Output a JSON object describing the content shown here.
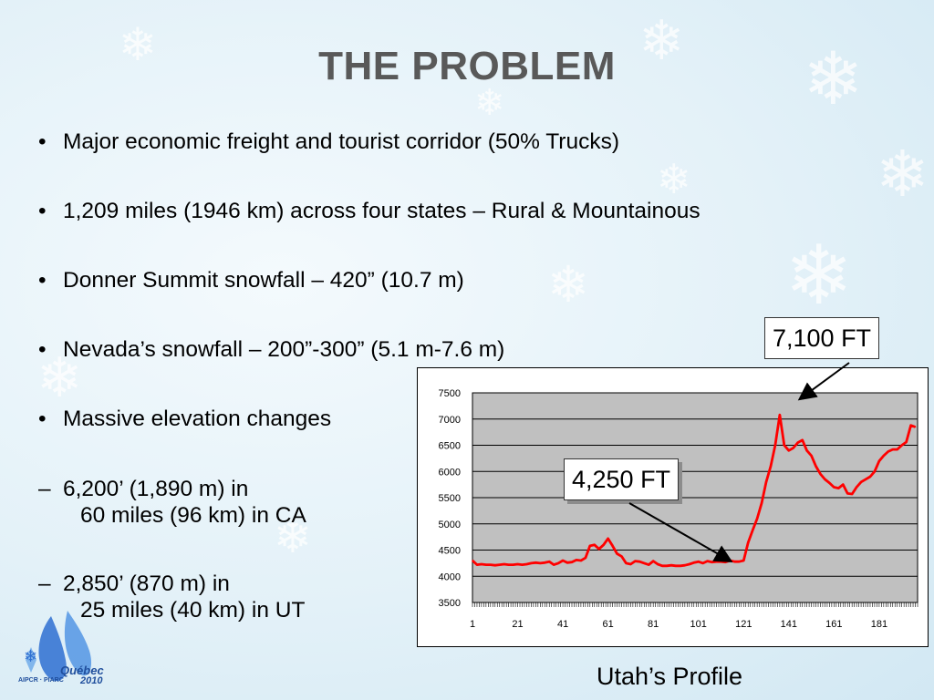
{
  "slide": {
    "title": "THE PROBLEM",
    "bullets": [
      {
        "mark": "•",
        "text": "Major economic freight and tourist corridor  (50% Trucks)"
      },
      {
        "mark": "•",
        "text": "1,209 miles (1946 km) across four states – Rural & Mountainous"
      },
      {
        "mark": "•",
        "text": "Donner Summit snowfall – 420” (10.7 m)"
      },
      {
        "mark": "•",
        "text": "Nevada’s snowfall – 200”-300” (5.1 m-7.6 m)"
      },
      {
        "mark": "•",
        "text": "Massive elevation changes"
      }
    ],
    "sub_bullets": [
      {
        "mark": "–",
        "line1": "6,200’ (1,890 m) in",
        "line2": "60 miles (96 km) in CA"
      },
      {
        "mark": "–",
        "line1": "2,850’ (870 m) in",
        "line2": "25 miles (40 km) in UT"
      }
    ],
    "caption": "Utah’s Profile",
    "logo": {
      "text_main": "Québec",
      "text_year": "2010",
      "text_org": "AIPCR · PIARC"
    }
  },
  "callouts": {
    "peak": "7,100 FT",
    "base": "4,250 FT"
  },
  "colors": {
    "series": "#ff0000",
    "plot_bg": "#c0c0c0",
    "title": "#595959"
  },
  "chart_data": {
    "type": "line",
    "title": "",
    "xlabel": "",
    "ylabel": "",
    "ylim": [
      3500,
      7500
    ],
    "yticks": [
      3500,
      4000,
      4500,
      5000,
      5500,
      6000,
      6500,
      7000,
      7500
    ],
    "xlim": [
      1,
      198
    ],
    "xticks": [
      1,
      21,
      41,
      61,
      81,
      101,
      121,
      141,
      161,
      181
    ],
    "grid": true,
    "legend": "none",
    "series": [
      {
        "name": "",
        "x": [
          1,
          3,
          5,
          7,
          9,
          11,
          13,
          15,
          17,
          19,
          21,
          23,
          25,
          27,
          29,
          31,
          33,
          35,
          37,
          39,
          41,
          43,
          45,
          47,
          49,
          51,
          53,
          55,
          57,
          59,
          61,
          63,
          65,
          67,
          69,
          71,
          73,
          75,
          77,
          79,
          81,
          83,
          85,
          87,
          89,
          91,
          93,
          95,
          97,
          99,
          101,
          103,
          105,
          107,
          109,
          111,
          113,
          115,
          117,
          119,
          121,
          123,
          125,
          127,
          129,
          131,
          133,
          135,
          137,
          139,
          141,
          143,
          145,
          147,
          149,
          151,
          153,
          155,
          157,
          159,
          161,
          163,
          165,
          167,
          169,
          171,
          173,
          175,
          177,
          179,
          181,
          183,
          185,
          187,
          189,
          191,
          193,
          195,
          197
        ],
        "y": [
          4300,
          4220,
          4230,
          4220,
          4220,
          4210,
          4220,
          4230,
          4220,
          4220,
          4230,
          4220,
          4230,
          4250,
          4260,
          4250,
          4260,
          4280,
          4220,
          4250,
          4300,
          4260,
          4270,
          4310,
          4300,
          4350,
          4580,
          4600,
          4520,
          4600,
          4720,
          4580,
          4430,
          4380,
          4250,
          4230,
          4290,
          4280,
          4250,
          4220,
          4290,
          4230,
          4200,
          4200,
          4210,
          4200,
          4200,
          4210,
          4230,
          4260,
          4280,
          4250,
          4290,
          4270,
          4280,
          4280,
          4270,
          4300,
          4280,
          4280,
          4300,
          4640,
          4880,
          5100,
          5400,
          5800,
          6100,
          6500,
          7080,
          6500,
          6400,
          6450,
          6550,
          6600,
          6400,
          6300,
          6100,
          5950,
          5850,
          5780,
          5700,
          5680,
          5750,
          5580,
          5570,
          5700,
          5800,
          5850,
          5900,
          6000,
          6200,
          6300,
          6380,
          6420,
          6420,
          6500,
          6560,
          6880,
          6850
        ]
      }
    ]
  }
}
